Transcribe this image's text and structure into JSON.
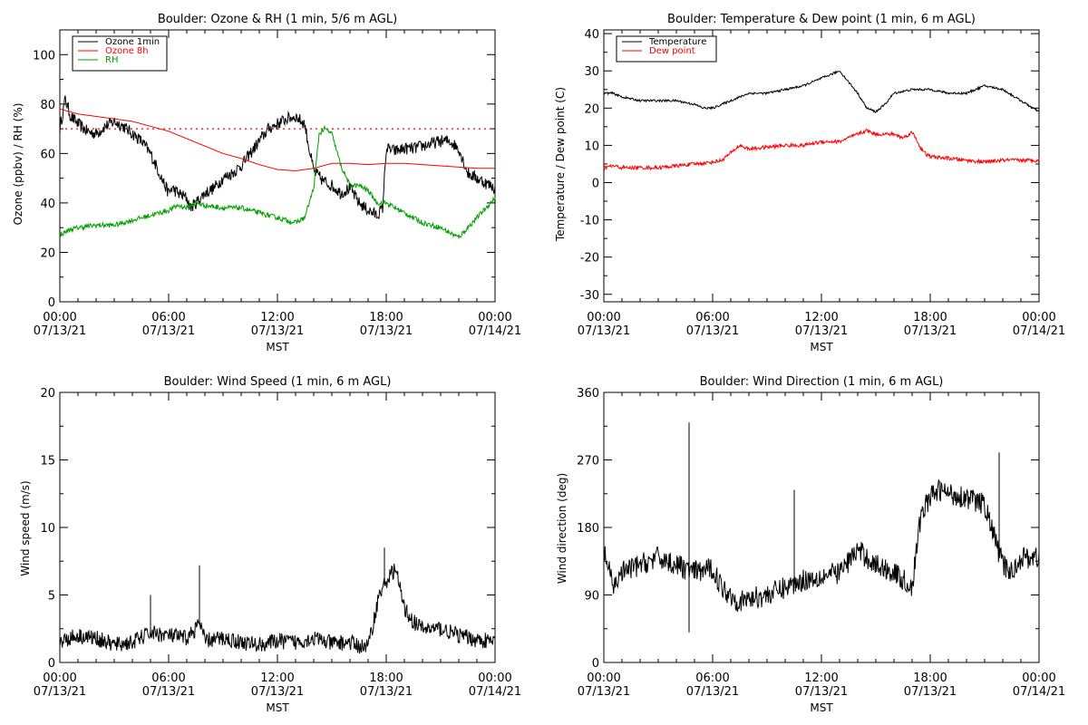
{
  "chart_data": [
    {
      "type": "line",
      "title": "Boulder: Ozone & RH (1 min, 5/6 m AGL)",
      "xlabel": "MST",
      "ylabel": "Ozone (ppbv) / RH (%)",
      "ylim": [
        0,
        110
      ],
      "yticks": [
        0,
        20,
        40,
        60,
        80,
        100
      ],
      "xticks": [
        {
          "hour": 0,
          "time": "00:00",
          "date": "07/13/21"
        },
        {
          "hour": 6,
          "time": "06:00",
          "date": "07/13/21"
        },
        {
          "hour": 12,
          "time": "12:00",
          "date": "07/13/21"
        },
        {
          "hour": 18,
          "time": "18:00",
          "date": "07/13/21"
        },
        {
          "hour": 24,
          "time": "00:00",
          "date": "07/14/21"
        }
      ],
      "legend_position": "top-left",
      "reference_line": {
        "y": 70,
        "color": "#ff0000",
        "style": "dotted"
      },
      "series": [
        {
          "name": "Ozone 1min",
          "color": "#000000",
          "noise": 2.5,
          "x": [
            0,
            0.3,
            0.6,
            1,
            1.5,
            2,
            2.5,
            3,
            3.5,
            4,
            4.5,
            5,
            5.5,
            5.8,
            6,
            6.2,
            6.5,
            7,
            7.2,
            7.5,
            8,
            8.5,
            9,
            9.5,
            10,
            10.5,
            11,
            11.5,
            12,
            12.5,
            13,
            13.5,
            13.8,
            14,
            14.5,
            15,
            15.5,
            16,
            16.5,
            17,
            17.5,
            17.8,
            18,
            18.5,
            19,
            19.5,
            20,
            20.5,
            21,
            21.5,
            22,
            22.5,
            23,
            23.5,
            24
          ],
          "y": [
            70,
            82,
            75,
            72,
            69,
            68,
            71,
            73,
            71,
            68,
            65,
            60,
            52,
            47,
            44,
            46,
            44,
            42,
            38,
            40,
            44,
            46,
            50,
            52,
            55,
            60,
            65,
            70,
            72,
            74,
            75,
            72,
            60,
            53,
            49,
            47,
            44,
            46,
            40,
            37,
            35,
            38,
            62,
            61,
            62,
            62,
            63,
            64,
            65,
            65,
            62,
            52,
            50,
            48,
            46
          ]
        },
        {
          "name": "Ozone 8h",
          "color": "#ff0000",
          "noise": 0,
          "x": [
            0,
            1,
            2,
            3,
            4,
            5,
            6,
            7,
            8,
            9,
            10,
            11,
            12,
            13,
            14,
            15,
            16,
            17,
            18,
            19,
            20,
            21,
            22,
            23,
            24
          ],
          "y": [
            78,
            76,
            75,
            74,
            73,
            71,
            69,
            66,
            63,
            60,
            58,
            55.5,
            53.5,
            53,
            54,
            56,
            56,
            55.5,
            56,
            56,
            55.5,
            55,
            54.5,
            54,
            54
          ]
        },
        {
          "name": "RH",
          "color": "#00a000",
          "noise": 1,
          "x": [
            0,
            0.5,
            1,
            2,
            3,
            4,
            5,
            6,
            6.5,
            7,
            7.5,
            8,
            9,
            10,
            11,
            12,
            13,
            13.5,
            14,
            14.3,
            14.6,
            15,
            15.5,
            16,
            16.5,
            17,
            17.5,
            18,
            19,
            20,
            21,
            22,
            23,
            24
          ],
          "y": [
            27,
            29,
            30,
            31,
            31,
            33,
            35,
            37,
            39,
            38,
            40,
            39,
            38,
            38,
            36,
            34,
            32,
            34,
            46,
            68,
            70,
            68,
            55,
            47,
            47,
            45,
            40,
            40,
            36,
            32,
            30,
            26,
            34,
            42
          ]
        }
      ]
    },
    {
      "type": "line",
      "title": "Boulder: Temperature & Dew point (1 min, 6 m AGL)",
      "xlabel": "MST",
      "ylabel": "Temperature / Dew point (C)",
      "ylim": [
        -32,
        41
      ],
      "yticks": [
        -30,
        -20,
        -10,
        0,
        10,
        20,
        30,
        40
      ],
      "xticks": [
        {
          "hour": 0,
          "time": "00:00",
          "date": "07/13/21"
        },
        {
          "hour": 6,
          "time": "06:00",
          "date": "07/13/21"
        },
        {
          "hour": 12,
          "time": "12:00",
          "date": "07/13/21"
        },
        {
          "hour": 18,
          "time": "18:00",
          "date": "07/13/21"
        },
        {
          "hour": 24,
          "time": "00:00",
          "date": "07/14/21"
        }
      ],
      "legend_position": "top-left",
      "series": [
        {
          "name": "Temperature",
          "color": "#000000",
          "noise": 0.3,
          "x": [
            0,
            0.5,
            1,
            2,
            3,
            4,
            5,
            5.5,
            6,
            6.5,
            7,
            7.5,
            8,
            9,
            10,
            11,
            12,
            12.5,
            13,
            13.5,
            14,
            14.5,
            15,
            15.5,
            16,
            17,
            18,
            19,
            20,
            21,
            22,
            23,
            24
          ],
          "y": [
            24,
            24,
            23,
            22,
            22,
            22,
            21,
            20,
            20,
            21,
            22,
            23,
            24,
            24,
            25,
            26,
            28,
            29,
            30,
            27,
            24,
            20,
            19,
            21,
            24,
            25,
            25,
            24,
            24,
            26,
            25,
            22,
            19
          ]
        },
        {
          "name": "Dew point",
          "color": "#ff0000",
          "noise": 0.5,
          "x": [
            0,
            0.5,
            1,
            2,
            3,
            4,
            5,
            6,
            6.5,
            7,
            7.5,
            8,
            9,
            10,
            11,
            12,
            13,
            14,
            14.5,
            15,
            16,
            16.5,
            17,
            17.2,
            17.5,
            17.8,
            18,
            19,
            20,
            21,
            22,
            23,
            24
          ],
          "y": [
            4,
            4.5,
            4,
            4,
            4,
            4.5,
            5,
            5.5,
            6,
            8,
            10,
            9,
            9.5,
            10,
            10,
            11,
            11,
            13,
            14,
            13,
            13,
            12,
            13.5,
            12,
            9,
            7.5,
            7,
            6.5,
            6,
            5.5,
            6,
            6,
            6
          ]
        }
      ]
    },
    {
      "type": "line",
      "title": "Boulder: Wind Speed (1 min, 6 m AGL)",
      "xlabel": "MST",
      "ylabel": "Wind speed (m/s)",
      "ylim": [
        0,
        20
      ],
      "yticks": [
        0,
        5,
        10,
        15,
        20
      ],
      "xticks": [
        {
          "hour": 0,
          "time": "00:00",
          "date": "07/13/21"
        },
        {
          "hour": 6,
          "time": "06:00",
          "date": "07/13/21"
        },
        {
          "hour": 12,
          "time": "12:00",
          "date": "07/13/21"
        },
        {
          "hour": 18,
          "time": "18:00",
          "date": "07/13/21"
        },
        {
          "hour": 24,
          "time": "00:00",
          "date": "07/14/21"
        }
      ],
      "series": [
        {
          "name": "",
          "color": "#000000",
          "noise": 0.6,
          "x": [
            0,
            1,
            2,
            3,
            4,
            5,
            6,
            7,
            7.5,
            7.7,
            8,
            9,
            10,
            11,
            12,
            13,
            14,
            15,
            16,
            16.5,
            17,
            17.3,
            17.6,
            18,
            18.5,
            19,
            19.5,
            20,
            21,
            22,
            23,
            24
          ],
          "y": [
            1.6,
            2,
            1.8,
            1.3,
            1.5,
            2.2,
            2,
            1.8,
            2.5,
            3,
            1.6,
            1.8,
            1.5,
            1.3,
            1.6,
            1.5,
            1.8,
            1.4,
            1.5,
            1.2,
            1.2,
            3,
            5,
            6,
            7,
            4,
            3,
            2.5,
            2.5,
            2,
            1.7,
            1.5
          ]
        }
      ],
      "spikes": [
        {
          "x": 5,
          "y": 5
        },
        {
          "x": 7.7,
          "y": 7.2
        },
        {
          "x": 17.9,
          "y": 8.5
        }
      ]
    },
    {
      "type": "line",
      "title": "Boulder: Wind Direction (1 min, 6 m AGL)",
      "xlabel": "MST",
      "ylabel": "Wind direction (deg)",
      "ylim": [
        0,
        360
      ],
      "yticks": [
        0,
        90,
        180,
        270,
        360
      ],
      "xticks": [
        {
          "hour": 0,
          "time": "00:00",
          "date": "07/13/21"
        },
        {
          "hour": 6,
          "time": "06:00",
          "date": "07/13/21"
        },
        {
          "hour": 12,
          "time": "12:00",
          "date": "07/13/21"
        },
        {
          "hour": 18,
          "time": "18:00",
          "date": "07/13/21"
        },
        {
          "hour": 24,
          "time": "00:00",
          "date": "07/14/21"
        }
      ],
      "series": [
        {
          "name": "",
          "color": "#000000",
          "noise": 15,
          "x": [
            0,
            0.5,
            1,
            2,
            3,
            4,
            5,
            6,
            6.5,
            7,
            7.5,
            8,
            9,
            10,
            11,
            12,
            13,
            14,
            15,
            16,
            16.5,
            17,
            17.5,
            18,
            18.5,
            19,
            20,
            21,
            22,
            22.5,
            23,
            24
          ],
          "y": [
            150,
            100,
            120,
            130,
            140,
            130,
            120,
            125,
            100,
            90,
            80,
            85,
            90,
            100,
            110,
            115,
            120,
            150,
            130,
            120,
            110,
            100,
            200,
            220,
            230,
            225,
            220,
            210,
            130,
            120,
            140,
            140
          ]
        }
      ],
      "spikes": [
        {
          "x": 4.7,
          "y": 320
        },
        {
          "x": 4.7,
          "y": 40
        },
        {
          "x": 10.5,
          "y": 230
        },
        {
          "x": 21.8,
          "y": 280
        }
      ]
    }
  ]
}
